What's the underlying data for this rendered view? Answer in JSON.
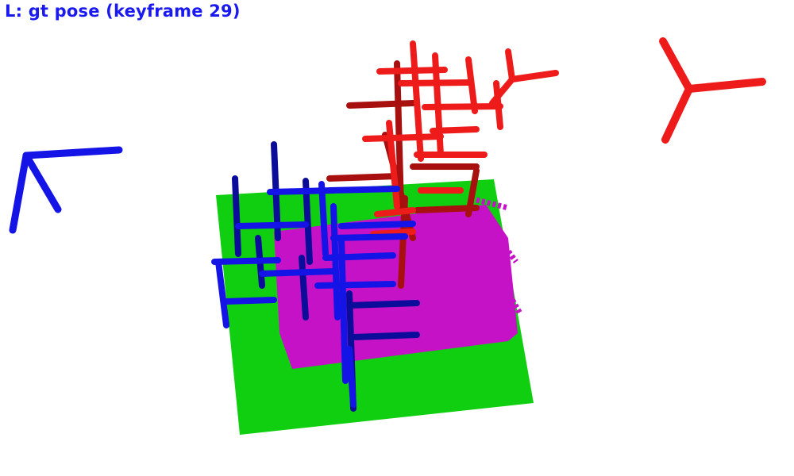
{
  "overlay": {
    "title": "L: gt pose (keyframe 29)"
  },
  "colors": {
    "title": "#1a1af0",
    "ground_plane": "#10cf10",
    "reconstruction": "#c612c6",
    "gt_pose_frames": "#1414e6",
    "est_pose_frames": "#ee1b1b",
    "est_pose_frames_dark": "#a81010"
  }
}
